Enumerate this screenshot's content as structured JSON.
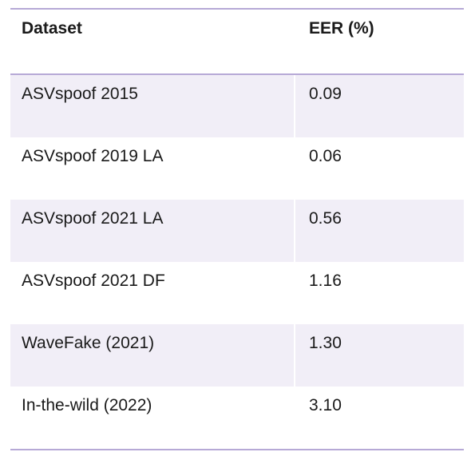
{
  "table": {
    "headers": {
      "dataset": "Dataset",
      "eer": "EER (%)"
    },
    "rows": [
      {
        "dataset": "ASVspoof 2015",
        "eer": "0.09"
      },
      {
        "dataset": "ASVspoof 2019 LA",
        "eer": "0.06"
      },
      {
        "dataset": "ASVspoof 2021 LA",
        "eer": "0.56"
      },
      {
        "dataset": "ASVspoof 2021 DF",
        "eer": "1.16"
      },
      {
        "dataset": "WaveFake (2021)",
        "eer": "1.30"
      },
      {
        "dataset": "In-the-wild (2022)",
        "eer": "3.10"
      }
    ]
  },
  "colors": {
    "rule": "#b6a9d6",
    "stripe": "#f1eef7"
  }
}
